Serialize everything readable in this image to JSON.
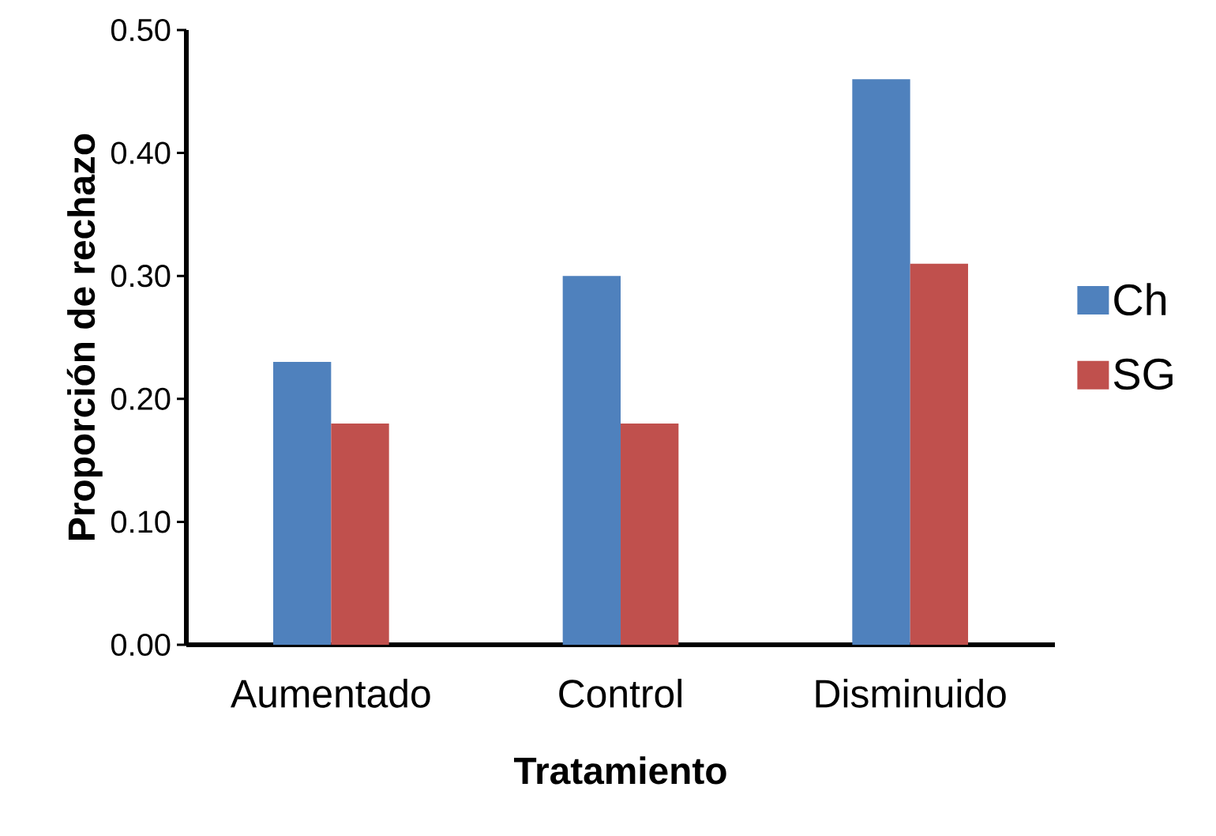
{
  "chart_data": {
    "type": "bar",
    "xlabel": "Tratamiento",
    "ylabel": "Proporción de rechazo",
    "categories": [
      "Aumentado",
      "Control",
      "Disminuido"
    ],
    "series": [
      {
        "name": "Ch",
        "color": "#4f81bd",
        "values": [
          0.23,
          0.3,
          0.46
        ]
      },
      {
        "name": "SG",
        "color": "#c0504d",
        "values": [
          0.18,
          0.18,
          0.31
        ]
      }
    ],
    "ylim": [
      0,
      0.5
    ],
    "yticks": [
      {
        "value": 0,
        "label": "0.00"
      },
      {
        "value": 0.1,
        "label": "0.10"
      },
      {
        "value": 0.2,
        "label": "0.20"
      },
      {
        "value": 0.3,
        "label": "0.30"
      },
      {
        "value": 0.4,
        "label": "0.40"
      },
      {
        "value": 0.5,
        "label": "0.50"
      }
    ],
    "grid": false,
    "legend": "right"
  }
}
